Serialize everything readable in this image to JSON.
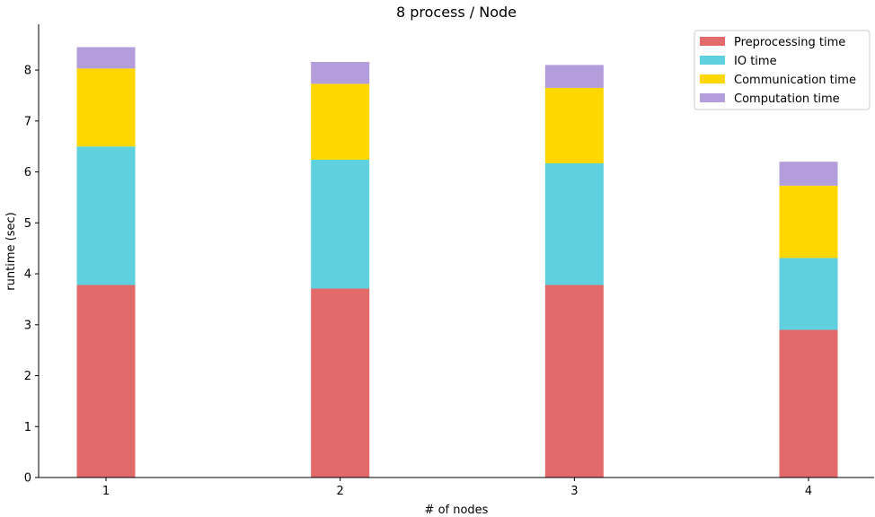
{
  "chart_data": {
    "type": "bar",
    "stacked": true,
    "title": "8 process / Node",
    "xlabel": "# of nodes",
    "ylabel": "runtime (sec)",
    "categories": [
      "1",
      "2",
      "3",
      "4"
    ],
    "ylim": [
      0,
      8.9
    ],
    "yticks": [
      0,
      1,
      2,
      3,
      4,
      5,
      6,
      7,
      8
    ],
    "grid": false,
    "legend_position": "top-right",
    "series": [
      {
        "name": "Preprocessing time",
        "color": "#e26a6a",
        "values": [
          3.78,
          3.71,
          3.78,
          2.9
        ]
      },
      {
        "name": "IO time",
        "color": "#5fd0dd",
        "values": [
          2.72,
          2.53,
          2.39,
          1.41
        ]
      },
      {
        "name": "Communication time",
        "color": "#ffd700",
        "values": [
          1.53,
          1.49,
          1.48,
          1.42
        ]
      },
      {
        "name": "Computation time",
        "color": "#b39ddb",
        "values": [
          0.42,
          0.43,
          0.45,
          0.47
        ]
      }
    ]
  }
}
